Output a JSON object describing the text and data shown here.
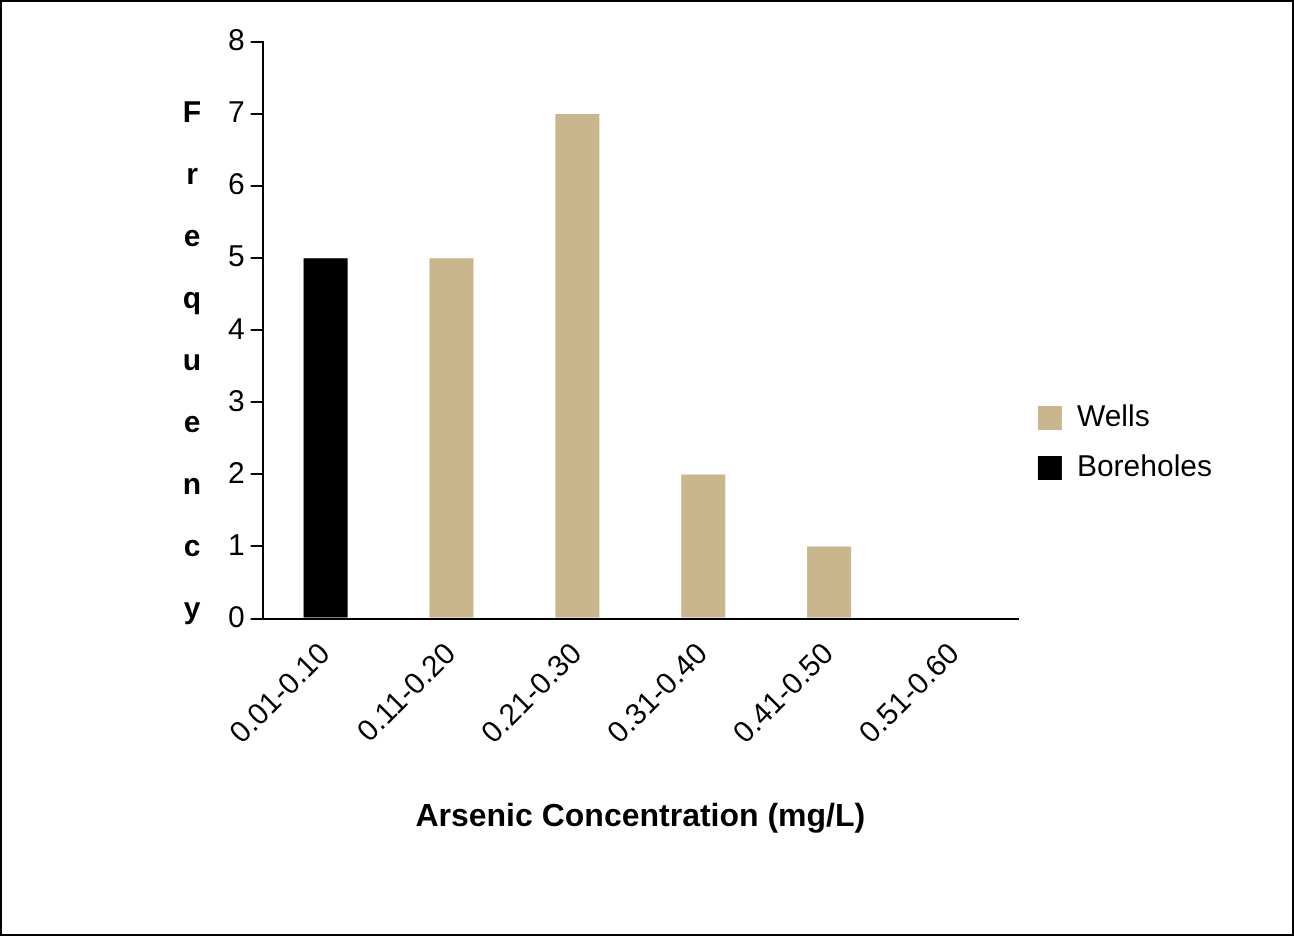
{
  "chart_data": {
    "type": "bar",
    "xlabel": "Arsenic Concentration (mg/L)",
    "ylabel": "Frequency",
    "categories": [
      "0.01-0.10",
      "0.11-0.20",
      "0.21-0.30",
      "0.31-0.40",
      "0.41-0.50",
      "0.51-0.60"
    ],
    "series": [
      {
        "name": "Wells",
        "color": "#c9b68c",
        "values": [
          0,
          5,
          7,
          2,
          1,
          0
        ]
      },
      {
        "name": "Boreholes",
        "color": "#000000",
        "values": [
          5,
          0,
          0,
          0,
          0,
          0
        ]
      }
    ],
    "stacked": true,
    "ylim": [
      0,
      8
    ],
    "yticks": [
      0,
      1,
      2,
      3,
      4,
      5,
      6,
      7,
      8
    ],
    "grid": false,
    "legend": "right"
  }
}
